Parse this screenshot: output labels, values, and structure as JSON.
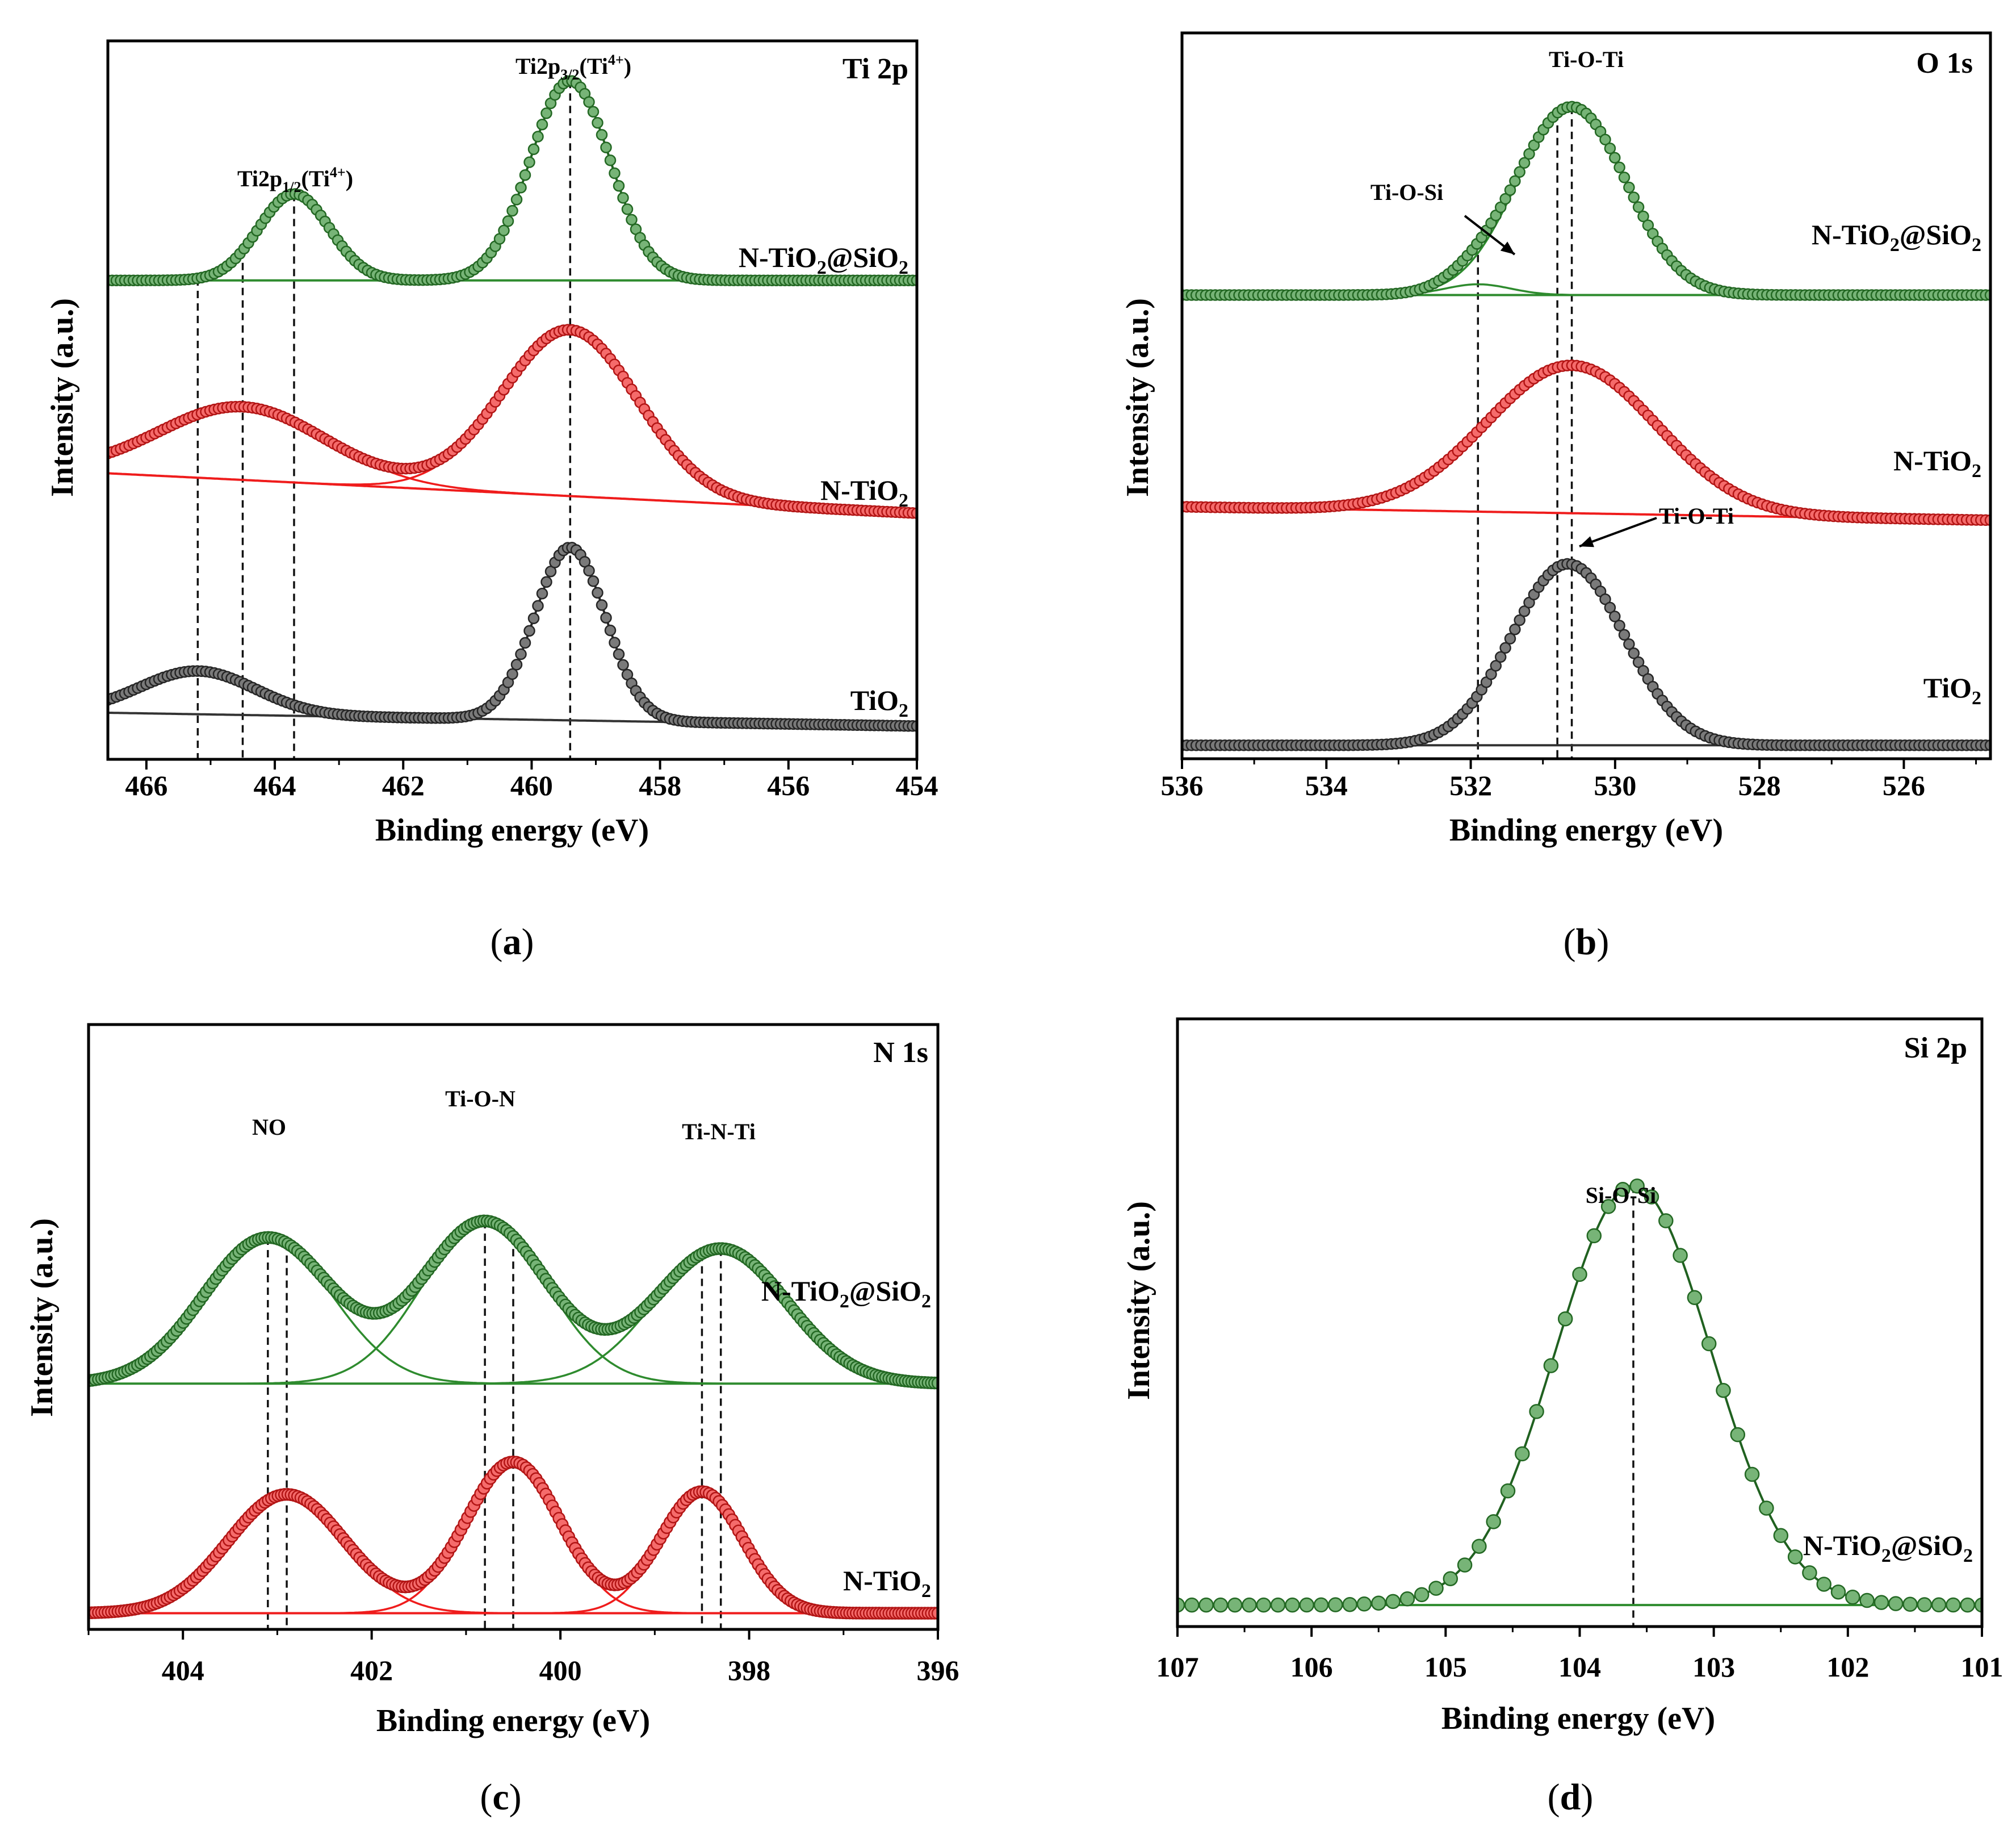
{
  "chart_data": [
    {
      "id": "a",
      "type": "line",
      "panel_label": "a",
      "title": "Ti 2p",
      "xlabel": "Binding energy (eV)",
      "ylabel": "Intensity (a.u.)",
      "xlim": [
        466.6,
        454
      ],
      "xticks": [
        466,
        464,
        462,
        460,
        458,
        456,
        454
      ],
      "series": [
        {
          "name": "N-TiO₂@SiO₂",
          "color": "#2e8b2e",
          "baseline": 0.7,
          "peaks": [
            {
              "center": 463.7,
              "height": 0.13,
              "width": 0.55
            },
            {
              "center": 459.4,
              "height": 0.3,
              "width": 0.62
            }
          ]
        },
        {
          "name": "N-TiO₂",
          "color": "#ef1c1c",
          "baseline": 0.35,
          "baseline_slope": 0.06,
          "peaks": [
            {
              "center": 464.5,
              "height": 0.11,
              "width": 1.3
            },
            {
              "center": 459.4,
              "height": 0.25,
              "width": 1.05
            }
          ]
        },
        {
          "name": "TiO₂",
          "color": "#333333",
          "baseline": 0.03,
          "baseline_slope": 0.02,
          "peaks": [
            {
              "center": 465.2,
              "height": 0.065,
              "width": 0.9
            },
            {
              "center": 459.4,
              "height": 0.26,
              "width": 0.55
            }
          ]
        }
      ],
      "dashed_lines": [
        465.2,
        464.5,
        463.7,
        459.4
      ],
      "annotations": [
        {
          "main": "Ti2p",
          "sub": "1/2",
          "paren_open": "(Ti",
          "sup": "4+",
          "paren_close": ")",
          "x": 463.7,
          "y": 0.88
        },
        {
          "main": "Ti2p",
          "sub": "3/2",
          "paren_open": "(Ti",
          "sup": "4+",
          "paren_close": ")",
          "x": 459.4,
          "y": 1.05
        }
      ]
    },
    {
      "id": "b",
      "type": "line",
      "panel_label": "b",
      "title": "O 1s",
      "xlabel": "Binding energy (eV)",
      "ylabel": "Intensity (a.u.)",
      "xlim": [
        536,
        524.8
      ],
      "xticks": [
        536,
        534,
        532,
        530,
        528,
        526
      ],
      "series": [
        {
          "name": "N-TiO₂@SiO₂",
          "color": "#2e8b2e",
          "baseline": 0.67,
          "peaks": [
            {
              "center": 530.6,
              "height": 0.28,
              "width": 0.75
            },
            {
              "center": 531.9,
              "height": 0.016,
              "width": 0.45
            }
          ]
        },
        {
          "name": "N-TiO₂",
          "color": "#ef1c1c",
          "baseline": 0.335,
          "baseline_slope": 0.02,
          "peaks": [
            {
              "center": 530.6,
              "height": 0.22,
              "width": 1.18
            }
          ]
        },
        {
          "name": "TiO₂",
          "color": "#333333",
          "baseline": 0.0,
          "peaks": [
            {
              "center": 530.65,
              "height": 0.27,
              "width": 0.78
            }
          ]
        }
      ],
      "dashed_lines": [
        531.9,
        530.8,
        530.6
      ],
      "annotations": [
        {
          "text": "Ti-O-Ti",
          "x": 530.6,
          "y": 0.995
        },
        {
          "text": "Ti-O-Si",
          "x": 532.9,
          "y": 0.8
        },
        {
          "text": "Ti-O-Ti",
          "x": 528.8,
          "y": 0.285
        }
      ]
    },
    {
      "id": "c",
      "type": "line",
      "panel_label": "c",
      "title": "N 1s",
      "xlabel": "Binding energy (eV)",
      "ylabel": "Intensity (a.u.)",
      "xlim": [
        405,
        396
      ],
      "xticks": [
        404,
        402,
        400,
        398,
        396
      ],
      "series": [
        {
          "name": "N-TiO₂@SiO₂",
          "color": "#2e8b2e",
          "baseline": 0.435,
          "peaks": [
            {
              "center": 403.1,
              "height": 0.27,
              "width": 0.68
            },
            {
              "center": 400.8,
              "height": 0.3,
              "width": 0.66
            },
            {
              "center": 398.3,
              "height": 0.25,
              "width": 0.7
            }
          ]
        },
        {
          "name": "N-TiO₂",
          "color": "#ef1c1c",
          "baseline": 0.01,
          "peaks": [
            {
              "center": 402.9,
              "height": 0.22,
              "width": 0.62
            },
            {
              "center": 400.5,
              "height": 0.28,
              "width": 0.5
            },
            {
              "center": 398.5,
              "height": 0.225,
              "width": 0.44
            }
          ]
        }
      ],
      "dashed_lines": [
        403.1,
        400.8,
        398.3,
        402.9,
        400.5,
        398.5
      ],
      "annotations": [
        {
          "text": "NO",
          "x": 403.1,
          "y": 0.88
        },
        {
          "text": "Ti-O-N",
          "x": 400.8,
          "y": 0.93
        },
        {
          "text": "Ti-N-Ti",
          "x": 398.3,
          "y": 0.85
        }
      ]
    },
    {
      "id": "d",
      "type": "line",
      "panel_label": "d",
      "title": "Si 2p",
      "xlabel": "Binding energy (eV)",
      "ylabel": "Intensity (a.u.)",
      "xlim": [
        107,
        101
      ],
      "xticks": [
        107,
        106,
        105,
        104,
        103,
        102,
        101
      ],
      "series": [
        {
          "name": "N-TiO₂@SiO₂",
          "color": "#2e8b2e",
          "baseline": 0.02,
          "peaks": [
            {
              "center": 103.6,
              "height": 0.78,
              "width": 0.58
            }
          ]
        }
      ],
      "dashed_lines": [
        103.6
      ],
      "annotations": [
        {
          "text": "Si-O-Si",
          "x": 103.6,
          "y": 0.9
        }
      ]
    }
  ]
}
